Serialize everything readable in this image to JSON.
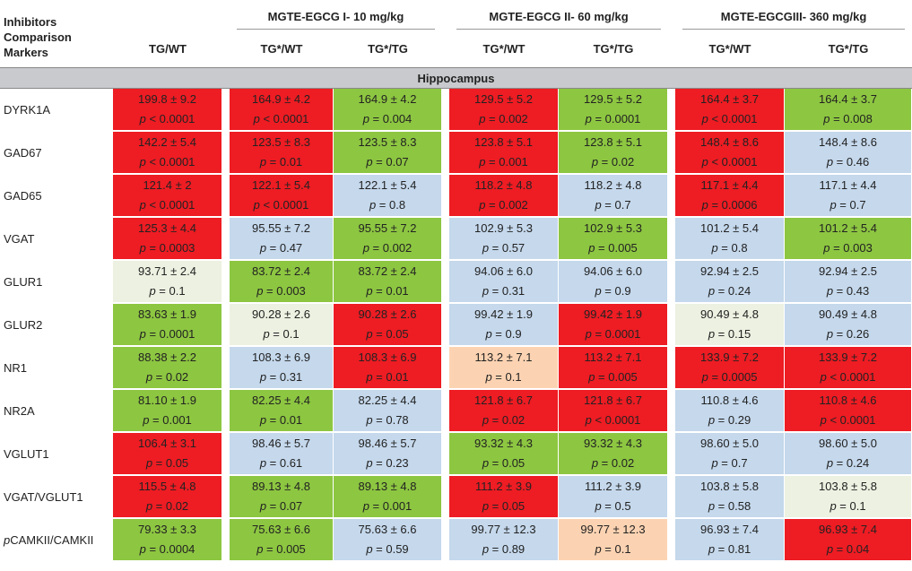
{
  "header": {
    "corner": [
      "Inhibitors",
      "Comparison",
      "Markers"
    ],
    "group1": "MGTE-EGCG I- 10 mg/kg",
    "group2": "MGTE-EGCG II- 60 mg/kg",
    "group3": "MGTE-EGCGIII- 360 mg/kg",
    "col_tgwt": "TG/WT",
    "col_tgs_wt": "TG*/WT",
    "col_tgs_tg": "TG*/TG"
  },
  "section": "Hippocampus",
  "colors": {
    "red": "#ee1c23",
    "green": "#8dc641",
    "blue": "#c5d8ec",
    "cream": "#ecf1e1",
    "peach": "#fcd3b2"
  },
  "rows": [
    {
      "marker": "DYRK1A",
      "cells": [
        {
          "v": "199.8 ± 9.2",
          "p": "< 0.0001",
          "c": "red"
        },
        {
          "v": "164.9 ± 4.2",
          "p": "< 0.0001",
          "c": "red"
        },
        {
          "v": "164.9 ± 4.2",
          "p": "= 0.004",
          "c": "green"
        },
        {
          "v": "129.5 ± 5.2",
          "p": "= 0.002",
          "c": "red"
        },
        {
          "v": "129.5 ± 5.2",
          "p": "= 0.0001",
          "c": "green"
        },
        {
          "v": "164.4 ± 3.7",
          "p": "< 0.0001",
          "c": "red"
        },
        {
          "v": "164.4 ± 3.7",
          "p": "= 0.008",
          "c": "green"
        }
      ]
    },
    {
      "marker": "GAD67",
      "cells": [
        {
          "v": "142.2 ± 5.4",
          "p": "< 0.0001",
          "c": "red"
        },
        {
          "v": "123.5 ± 8.3",
          "p": "= 0.01",
          "c": "red"
        },
        {
          "v": "123.5 ± 8.3",
          "p": "= 0.07",
          "c": "green"
        },
        {
          "v": "123.8 ± 5.1",
          "p": "= 0.001",
          "c": "red"
        },
        {
          "v": "123.8 ± 5.1",
          "p": "= 0.02",
          "c": "green"
        },
        {
          "v": "148.4 ± 8.6",
          "p": "< 0.0001",
          "c": "red"
        },
        {
          "v": "148.4 ± 8.6",
          "p": "= 0.46",
          "c": "blue"
        }
      ]
    },
    {
      "marker": "GAD65",
      "cells": [
        {
          "v": "121.4 ± 2",
          "p": "< 0.0001",
          "c": "red"
        },
        {
          "v": "122.1 ± 5.4",
          "p": "< 0.0001",
          "c": "red"
        },
        {
          "v": "122.1 ± 5.4",
          "p": "= 0.8",
          "c": "blue"
        },
        {
          "v": "118.2 ± 4.8",
          "p": "= 0.002",
          "c": "red"
        },
        {
          "v": "118.2 ± 4.8",
          "p": "= 0.7",
          "c": "blue"
        },
        {
          "v": "117.1 ± 4.4",
          "p": "= 0.0006",
          "c": "red"
        },
        {
          "v": "117.1 ± 4.4",
          "p": "= 0.7",
          "c": "blue"
        }
      ]
    },
    {
      "marker": "VGAT",
      "cells": [
        {
          "v": "125.3 ± 4.4",
          "p": "= 0.0003",
          "c": "red"
        },
        {
          "v": "95.55 ± 7.2",
          "p": "= 0.47",
          "c": "blue"
        },
        {
          "v": "95.55 ± 7.2",
          "p": "= 0.002",
          "c": "green"
        },
        {
          "v": "102.9 ± 5.3",
          "p": "= 0.57",
          "c": "blue"
        },
        {
          "v": "102.9 ± 5.3",
          "p": "= 0.005",
          "c": "green"
        },
        {
          "v": "101.2 ± 5.4",
          "p": "= 0.8",
          "c": "blue"
        },
        {
          "v": "101.2 ± 5.4",
          "p": "= 0.003",
          "c": "green"
        }
      ]
    },
    {
      "marker": "GLUR1",
      "cells": [
        {
          "v": "93.71 ± 2.4",
          "p": "= 0.1",
          "c": "cream"
        },
        {
          "v": "83.72 ± 2.4",
          "p": "= 0.003",
          "c": "green"
        },
        {
          "v": "83.72 ± 2.4",
          "p": "= 0.01",
          "c": "green"
        },
        {
          "v": "94.06 ± 6.0",
          "p": "= 0.31",
          "c": "blue"
        },
        {
          "v": "94.06 ± 6.0",
          "p": "= 0.9",
          "c": "blue"
        },
        {
          "v": "92.94 ± 2.5",
          "p": "= 0.24",
          "c": "blue"
        },
        {
          "v": "92.94 ± 2.5",
          "p": "= 0.43",
          "c": "blue"
        }
      ]
    },
    {
      "marker": "GLUR2",
      "cells": [
        {
          "v": "83.63 ± 1.9",
          "p": "= 0.0001",
          "c": "green"
        },
        {
          "v": "90.28 ± 2.6",
          "p": "= 0.1",
          "c": "cream"
        },
        {
          "v": "90.28 ± 2.6",
          "p": "= 0.05",
          "c": "red"
        },
        {
          "v": "99.42 ± 1.9",
          "p": "= 0.9",
          "c": "blue"
        },
        {
          "v": "99.42 ± 1.9",
          "p": "= 0.0001",
          "c": "red"
        },
        {
          "v": "90.49 ± 4.8",
          "p": "= 0.15",
          "c": "cream"
        },
        {
          "v": "90.49 ± 4.8",
          "p": "= 0.26",
          "c": "blue"
        }
      ]
    },
    {
      "marker": "NR1",
      "cells": [
        {
          "v": "88.38 ± 2.2",
          "p": "= 0.02",
          "c": "green"
        },
        {
          "v": "108.3 ± 6.9",
          "p": "= 0.31",
          "c": "blue"
        },
        {
          "v": "108.3 ± 6.9",
          "p": "= 0.01",
          "c": "red"
        },
        {
          "v": "113.2 ± 7.1",
          "p": "= 0.1",
          "c": "peach"
        },
        {
          "v": "113.2 ± 7.1",
          "p": "= 0.005",
          "c": "red"
        },
        {
          "v": "133.9 ± 7.2",
          "p": "= 0.0005",
          "c": "red"
        },
        {
          "v": "133.9 ± 7.2",
          "p": "< 0.0001",
          "c": "red"
        }
      ]
    },
    {
      "marker": "NR2A",
      "cells": [
        {
          "v": "81.10 ± 1.9",
          "p": "= 0.001",
          "c": "green"
        },
        {
          "v": "82.25 ± 4.4",
          "p": "= 0.01",
          "c": "green"
        },
        {
          "v": "82.25 ± 4.4",
          "p": "= 0.78",
          "c": "blue"
        },
        {
          "v": "121.8 ± 6.7",
          "p": "= 0.02",
          "c": "red"
        },
        {
          "v": "121.8 ± 6.7",
          "p": "< 0.0001",
          "c": "red"
        },
        {
          "v": "110.8 ± 4.6",
          "p": "= 0.29",
          "c": "blue"
        },
        {
          "v": "110.8 ± 4.6",
          "p": "< 0.0001",
          "c": "red"
        }
      ]
    },
    {
      "marker": "VGLUT1",
      "cells": [
        {
          "v": "106.4 ± 3.1",
          "p": "= 0.05",
          "c": "red"
        },
        {
          "v": "98.46 ± 5.7",
          "p": "= 0.61",
          "c": "blue"
        },
        {
          "v": "98.46 ± 5.7",
          "p": "= 0.23",
          "c": "blue"
        },
        {
          "v": "93.32 ± 4.3",
          "p": "= 0.05",
          "c": "green"
        },
        {
          "v": "93.32 ± 4.3",
          "p": "= 0.02",
          "c": "green"
        },
        {
          "v": "98.60 ± 5.0",
          "p": "= 0.7",
          "c": "blue"
        },
        {
          "v": "98.60 ± 5.0",
          "p": "= 0.24",
          "c": "blue"
        }
      ]
    },
    {
      "marker": "VGAT/VGLUT1",
      "cells": [
        {
          "v": "115.5 ± 4.8",
          "p": "= 0.02",
          "c": "red"
        },
        {
          "v": "89.13 ± 4.8",
          "p": "= 0.07",
          "c": "green"
        },
        {
          "v": "89.13 ± 4.8",
          "p": "= 0.001",
          "c": "green"
        },
        {
          "v": "111.2 ± 3.9",
          "p": "= 0.05",
          "c": "red"
        },
        {
          "v": "111.2 ± 3.9",
          "p": "= 0.5",
          "c": "blue"
        },
        {
          "v": "103.8 ± 5.8",
          "p": "= 0.58",
          "c": "blue"
        },
        {
          "v": "103.8 ± 5.8",
          "p": "= 0.1",
          "c": "cream"
        }
      ]
    },
    {
      "marker": "pCAMKII/CAMKII",
      "cells": [
        {
          "v": "79.33 ± 3.3",
          "p": "= 0.0004",
          "c": "green"
        },
        {
          "v": "75.63 ± 6.6",
          "p": "= 0.005",
          "c": "green"
        },
        {
          "v": "75.63 ± 6.6",
          "p": "= 0.59",
          "c": "blue"
        },
        {
          "v": "99.77 ± 12.3",
          "p": "= 0.89",
          "c": "blue"
        },
        {
          "v": "99.77 ± 12.3",
          "p": "= 0.1",
          "c": "peach"
        },
        {
          "v": "96.93 ± 7.4",
          "p": "= 0.81",
          "c": "blue"
        },
        {
          "v": "96.93 ± 7.4",
          "p": "= 0.04",
          "c": "red"
        }
      ]
    }
  ]
}
